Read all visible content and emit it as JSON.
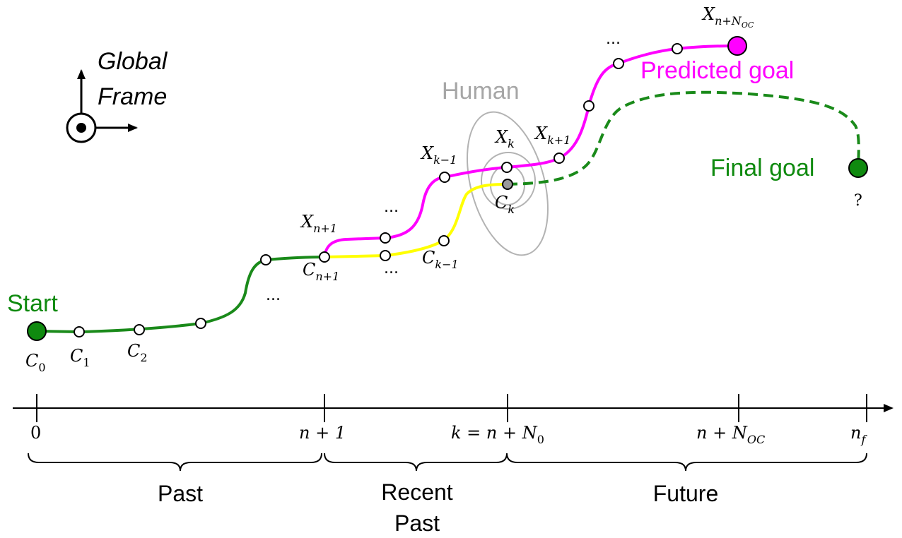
{
  "frame": {
    "line1": "Global",
    "line2": "Frame"
  },
  "human": {
    "label": "Human"
  },
  "start": {
    "label": "Start",
    "c0": "C",
    "c0_sub": "0",
    "c1": "C",
    "c1_sub": "1",
    "c2": "C",
    "c2_sub": "2"
  },
  "past_labels": {
    "cn1": "C",
    "cn1_sub": "n+1",
    "ck1": "C",
    "ck1_sub": "k−1",
    "ck": "C",
    "ck_sub": "k"
  },
  "prediction_labels": {
    "xn1": "X",
    "xn1_sub": "n+1",
    "xk1": "X",
    "xk1_sub": "k−1",
    "xk": "X",
    "xk_sub": "k",
    "xkp1": "X",
    "xkp1_sub": "k+1",
    "xnoc": "X",
    "xnoc_sub": "n+N",
    "xnoc_subsub": "OC"
  },
  "goals": {
    "predicted": "Predicted goal",
    "final": "Final goal",
    "unknown": "?"
  },
  "ellipsis": "...",
  "timeline": {
    "ticks": [
      {
        "base": "0"
      },
      {
        "base": "n + 1"
      },
      {
        "base": "k = n + N",
        "sub": "0"
      },
      {
        "base": "n + N",
        "sub": "OC"
      },
      {
        "base": "n",
        "sub": "f"
      }
    ],
    "phases": [
      {
        "line1": "Past"
      },
      {
        "line1": "Recent",
        "line2": "Past"
      },
      {
        "line1": "Future"
      }
    ]
  },
  "colors": {
    "past_path": "#1a8a1a",
    "recent_path": "#ffff00",
    "prediction": "#ff00ff",
    "human_ellipse": "#b3b3b3",
    "human_text": "#a6a6a6",
    "goal_green": "#0f8a0f"
  }
}
